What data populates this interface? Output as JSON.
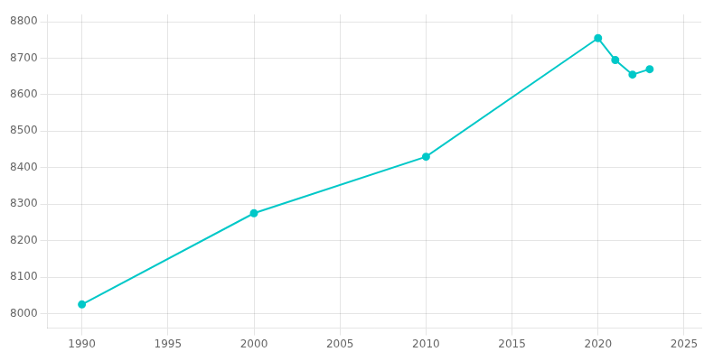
{
  "chart_data": {
    "type": "line",
    "x": [
      1990,
      2000,
      2010,
      2020,
      2021,
      2022,
      2023
    ],
    "values": [
      8025,
      8275,
      8430,
      8755,
      8695,
      8655,
      8670
    ],
    "color": "#00c8c8",
    "marker": "circle",
    "xlim": [
      1988,
      2026
    ],
    "ylim": [
      7960,
      8820
    ],
    "xticks": [
      1990,
      1995,
      2000,
      2005,
      2010,
      2015,
      2020,
      2025
    ],
    "yticks": [
      8000,
      8100,
      8200,
      8300,
      8400,
      8500,
      8600,
      8700,
      8800
    ],
    "grid": true
  }
}
